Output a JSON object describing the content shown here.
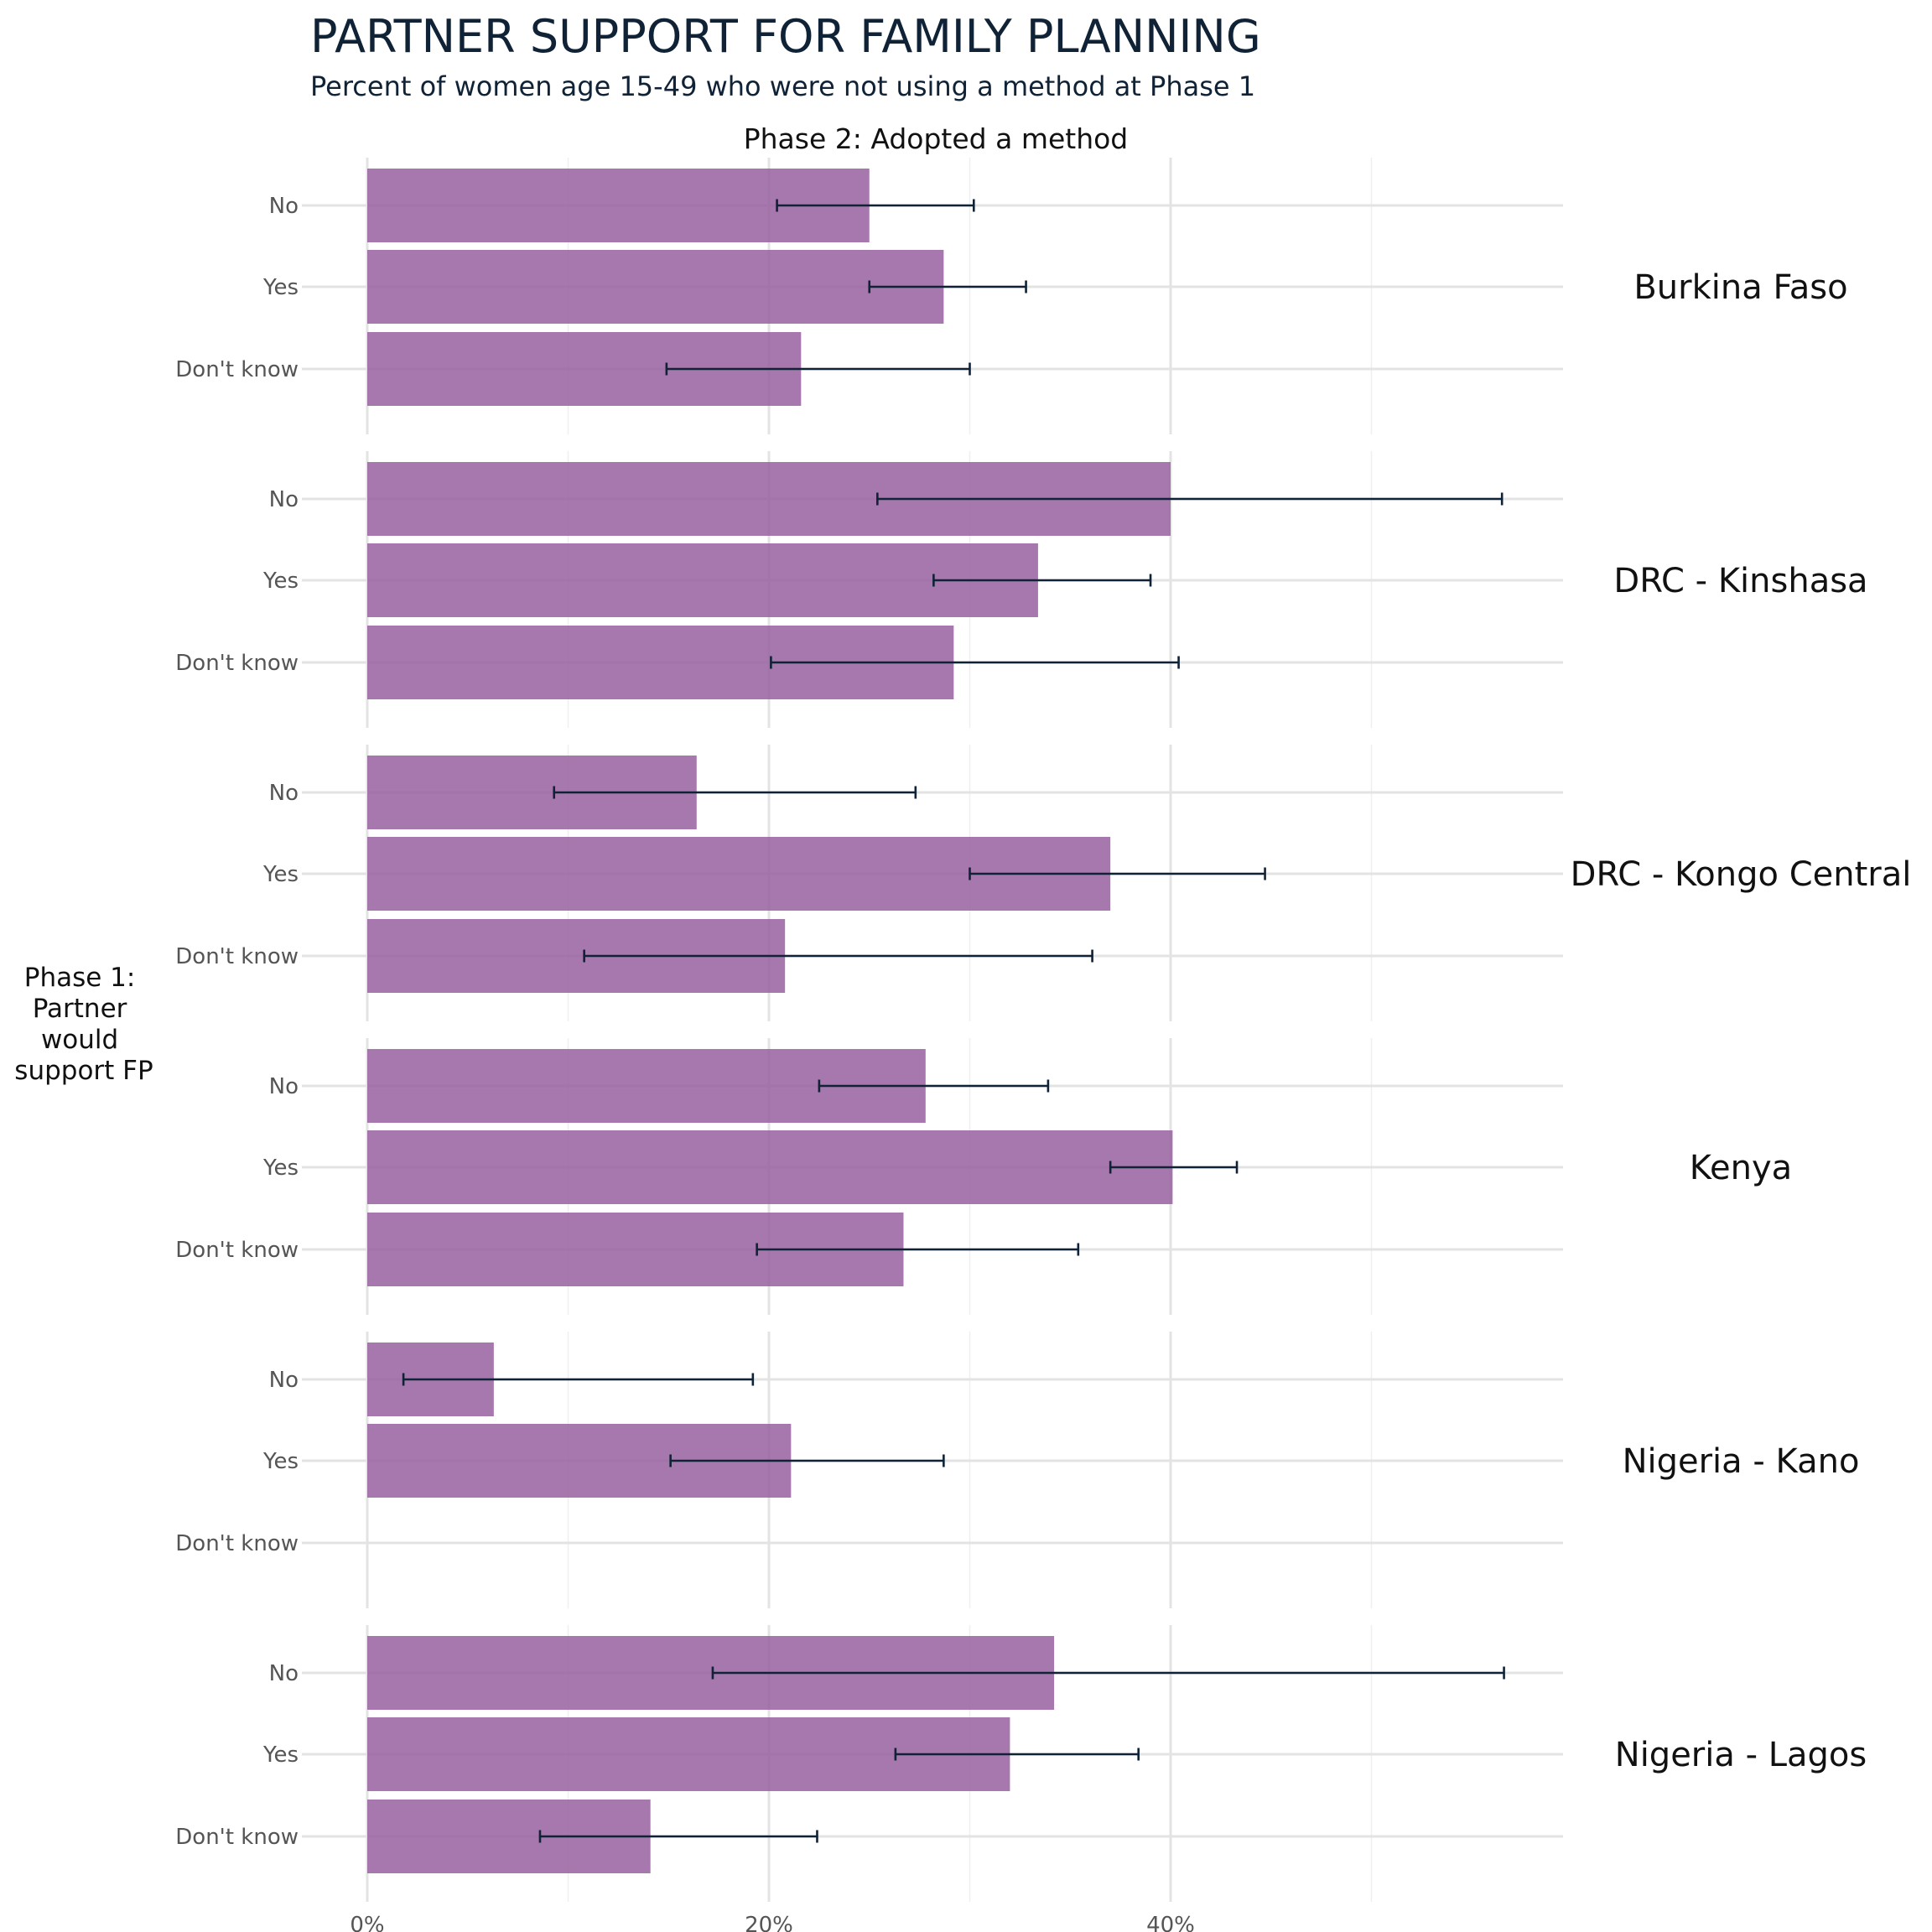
{
  "title": "PARTNER SUPPORT FOR FAMILY PLANNING",
  "subtitle": "Percent of women age 15-49 who were not using a method at Phase 1",
  "facet_title": "Phase 2: Adopted a method",
  "y_axis_label": [
    "Phase 1:",
    "Partner",
    "would",
    "support FP"
  ],
  "colors": {
    "bar": "#98609f",
    "errorbar": "#0f2236",
    "title": "#0f2236"
  },
  "chart_data": {
    "type": "bar",
    "orientation": "horizontal",
    "value_unit": "percent",
    "xlim": [
      0,
      59.5
    ],
    "x_ticks": [
      {
        "value": 0,
        "label": "0%"
      },
      {
        "value": 20,
        "label": "20%"
      },
      {
        "value": 40,
        "label": "40%"
      }
    ],
    "x_minor_ticks": [
      10,
      30,
      50
    ],
    "categories": [
      "No",
      "Yes",
      "Don't know"
    ],
    "grid": true,
    "panels": [
      {
        "name": "Burkina Faso",
        "bars": [
          {
            "category": "No",
            "value": 25.0,
            "ci": [
              20.4,
              30.2
            ]
          },
          {
            "category": "Yes",
            "value": 28.7,
            "ci": [
              25.0,
              32.8
            ]
          },
          {
            "category": "Don't know",
            "value": 21.6,
            "ci": [
              14.9,
              30.0
            ]
          }
        ]
      },
      {
        "name": "DRC - Kinshasa",
        "bars": [
          {
            "category": "No",
            "value": 40.0,
            "ci": [
              25.4,
              56.5
            ]
          },
          {
            "category": "Yes",
            "value": 33.4,
            "ci": [
              28.2,
              39.0
            ]
          },
          {
            "category": "Don't know",
            "value": 29.2,
            "ci": [
              20.1,
              40.4
            ]
          }
        ]
      },
      {
        "name": "DRC - Kongo Central",
        "bars": [
          {
            "category": "No",
            "value": 16.4,
            "ci": [
              9.3,
              27.3
            ]
          },
          {
            "category": "Yes",
            "value": 37.0,
            "ci": [
              30.0,
              44.7
            ]
          },
          {
            "category": "Don't know",
            "value": 20.8,
            "ci": [
              10.8,
              36.1
            ]
          }
        ]
      },
      {
        "name": "Kenya",
        "bars": [
          {
            "category": "No",
            "value": 27.8,
            "ci": [
              22.5,
              33.9
            ]
          },
          {
            "category": "Yes",
            "value": 40.1,
            "ci": [
              37.0,
              43.3
            ]
          },
          {
            "category": "Don't know",
            "value": 26.7,
            "ci": [
              19.4,
              35.4
            ]
          }
        ]
      },
      {
        "name": "Nigeria - Kano",
        "bars": [
          {
            "category": "No",
            "value": 6.3,
            "ci": [
              1.8,
              19.2
            ]
          },
          {
            "category": "Yes",
            "value": 21.1,
            "ci": [
              15.1,
              28.7
            ]
          },
          {
            "category": "Don't know",
            "value": null,
            "ci": null
          }
        ]
      },
      {
        "name": "Nigeria - Lagos",
        "bars": [
          {
            "category": "No",
            "value": 34.2,
            "ci": [
              17.2,
              56.6
            ]
          },
          {
            "category": "Yes",
            "value": 32.0,
            "ci": [
              26.3,
              38.4
            ]
          },
          {
            "category": "Don't know",
            "value": 14.1,
            "ci": [
              8.6,
              22.4
            ]
          }
        ]
      }
    ]
  }
}
